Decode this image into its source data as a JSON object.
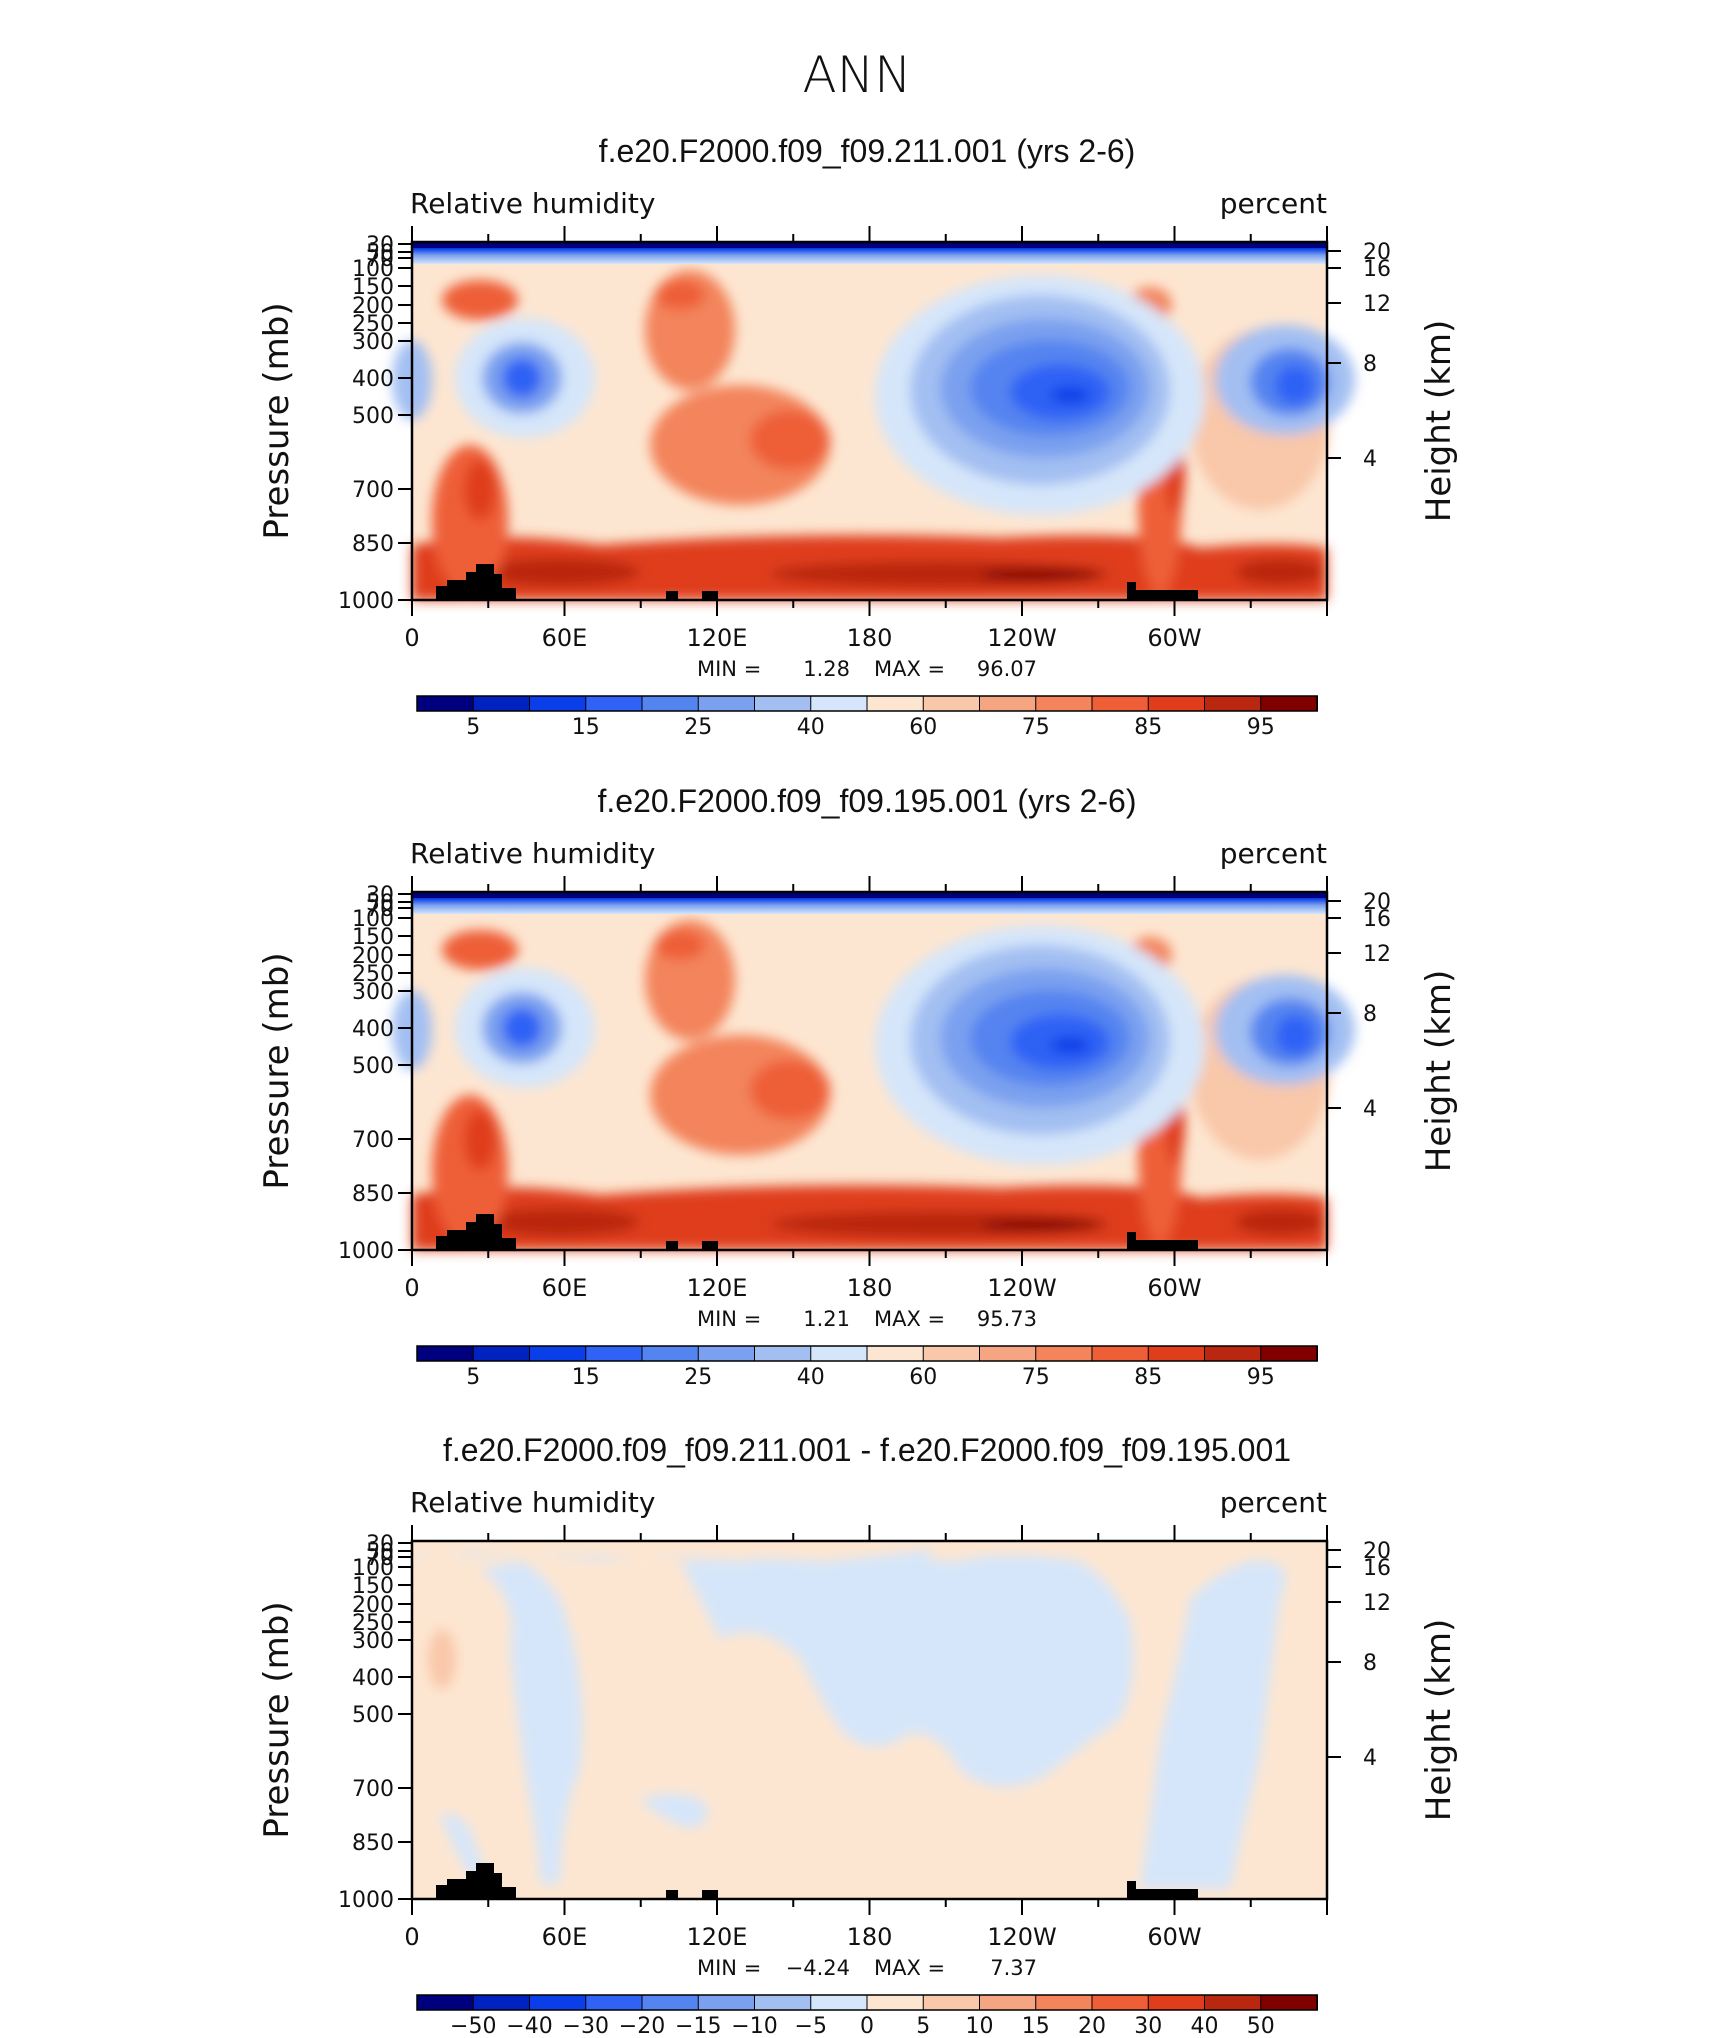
{
  "page_title": "ANN",
  "colorbar_labels": {
    "abs": [
      "5",
      "15",
      "25",
      "40",
      "60",
      "75",
      "85",
      "95"
    ],
    "diff": [
      "−50",
      "−40",
      "−30",
      "−20",
      "−15",
      "−10",
      "−5",
      "0",
      "5",
      "10",
      "15",
      "20",
      "30",
      "40",
      "50"
    ]
  },
  "colors": {
    "abs": [
      "#00007f",
      "#0022c0",
      "#0a3ee8",
      "#2f62f5",
      "#5484f0",
      "#7aa0ef",
      "#a3bff2",
      "#d5e6fa",
      "#fde6d1",
      "#f9c7a9",
      "#f6a582",
      "#f3845c",
      "#ee5f37",
      "#df3d1c",
      "#b92710",
      "#800000"
    ],
    "diff": [
      "#00007f",
      "#0022c0",
      "#0a3ee8",
      "#2f62f5",
      "#5484f0",
      "#7aa0ef",
      "#a3bff2",
      "#d5e6fa",
      "#fde6d1",
      "#f9c7a9",
      "#f6a582",
      "#f3845c",
      "#ee5f37",
      "#df3d1c",
      "#b92710",
      "#800000"
    ]
  },
  "chart_data": [
    {
      "type": "heatmap",
      "title": "f.e20.F2000.f09_f09.211.001 (yrs 2-6)",
      "left_label": "Relative humidity",
      "right_label": "percent",
      "ylabel": "Pressure (mb)",
      "ylabel_right": "Height (km)",
      "xticks": [
        "0",
        "60E",
        "120E",
        "180",
        "120W",
        "60W"
      ],
      "yticks": [
        "30",
        "50",
        "70",
        "100",
        "150",
        "200",
        "250",
        "300",
        "400",
        "500",
        "700",
        "850",
        "1000"
      ],
      "yticks_right": [
        "20",
        "16",
        "12",
        "8",
        "4"
      ],
      "min_label": "MIN =",
      "min_value": "1.28",
      "max_label": "MAX =",
      "max_value": "96.07",
      "colorbar": "abs"
    },
    {
      "type": "heatmap",
      "title": "f.e20.F2000.f09_f09.195.001 (yrs 2-6)",
      "left_label": "Relative humidity",
      "right_label": "percent",
      "ylabel": "Pressure (mb)",
      "ylabel_right": "Height (km)",
      "xticks": [
        "0",
        "60E",
        "120E",
        "180",
        "120W",
        "60W"
      ],
      "yticks": [
        "30",
        "50",
        "70",
        "100",
        "150",
        "200",
        "250",
        "300",
        "400",
        "500",
        "700",
        "850",
        "1000"
      ],
      "yticks_right": [
        "20",
        "16",
        "12",
        "8",
        "4"
      ],
      "min_label": "MIN =",
      "min_value": "1.21",
      "max_label": "MAX =",
      "max_value": "95.73",
      "colorbar": "abs"
    },
    {
      "type": "heatmap",
      "title": "f.e20.F2000.f09_f09.211.001 - f.e20.F2000.f09_f09.195.001",
      "left_label": "Relative humidity",
      "right_label": "percent",
      "ylabel": "Pressure (mb)",
      "ylabel_right": "Height (km)",
      "xticks": [
        "0",
        "60E",
        "120E",
        "180",
        "120W",
        "60W"
      ],
      "yticks": [
        "30",
        "50",
        "70",
        "100",
        "150",
        "200",
        "250",
        "300",
        "400",
        "500",
        "700",
        "850",
        "1000"
      ],
      "yticks_right": [
        "20",
        "16",
        "12",
        "8",
        "4"
      ],
      "min_label": "MIN =",
      "min_value": "−4.24",
      "max_label": "MAX =",
      "max_value": "7.37",
      "colorbar": "diff"
    }
  ]
}
